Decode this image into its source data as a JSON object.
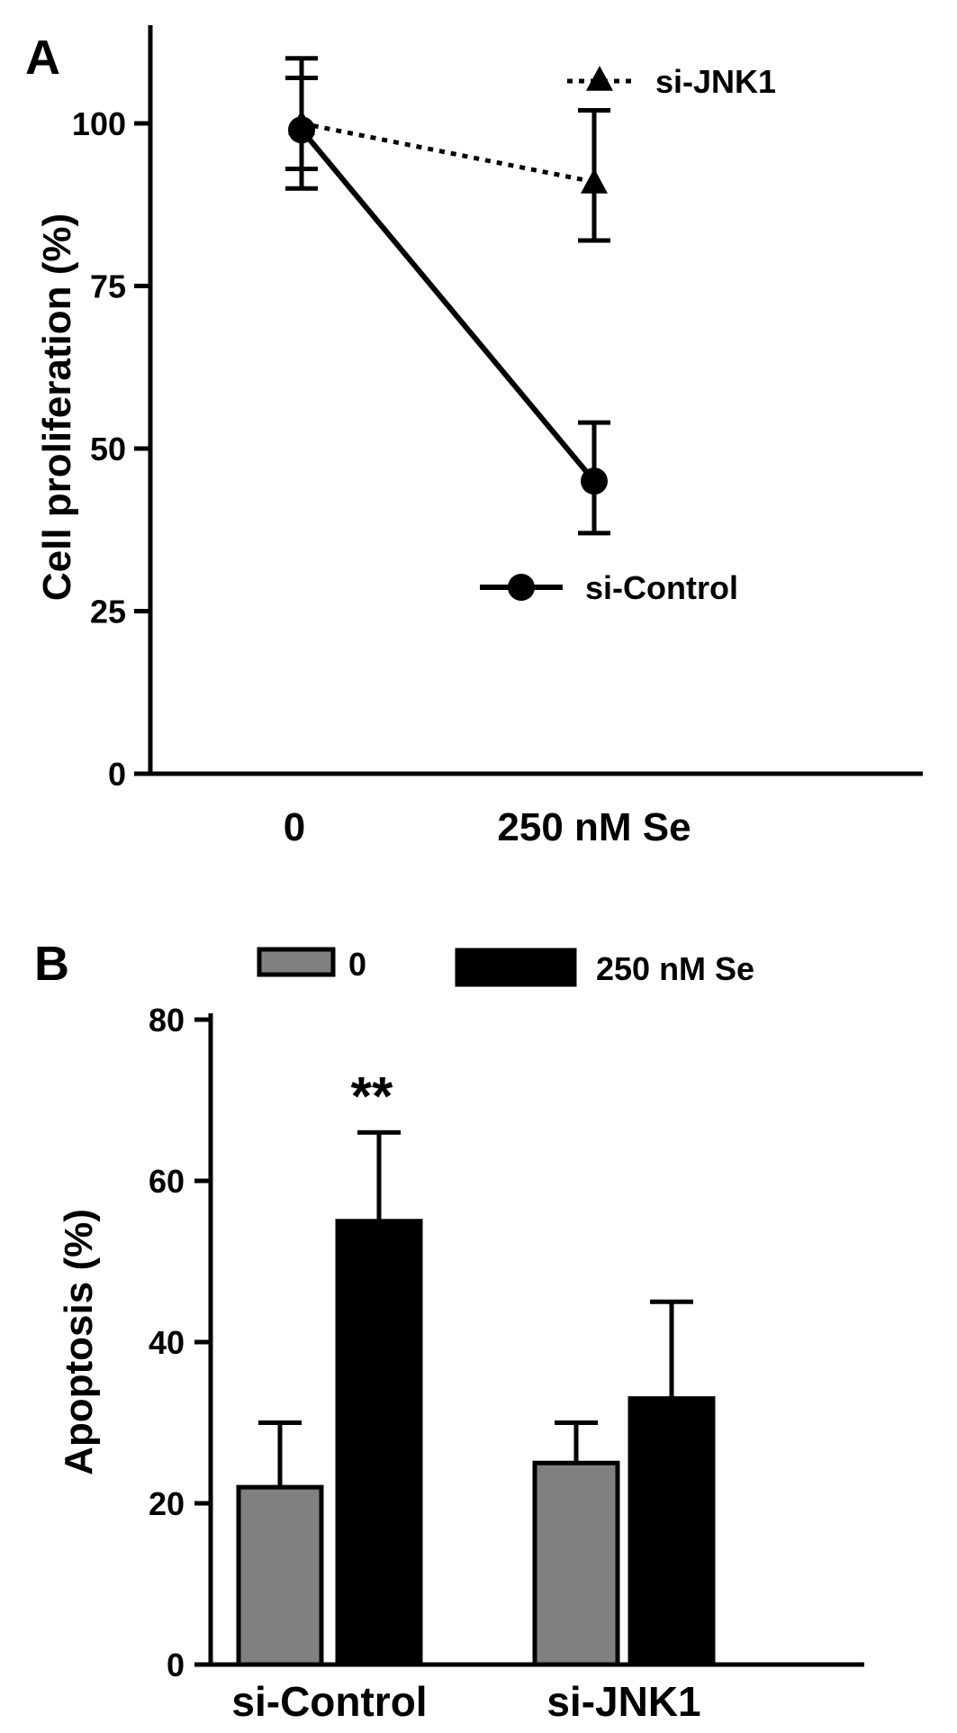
{
  "chart_data": [
    {
      "panel_label": "A",
      "type": "line",
      "title": "",
      "ylabel": "Cell proliferation (%)",
      "xlabel": "",
      "categories": [
        "0",
        "250 nM Se"
      ],
      "ylim": [
        0,
        100
      ],
      "yticks": [
        "0",
        "25",
        "50",
        "75",
        "100"
      ],
      "series": [
        {
          "name": "si-JNK1",
          "marker": "triangle",
          "line_style": "dotted",
          "values": [
            100,
            91
          ],
          "errors": [
            [
              90,
              110
            ],
            [
              82,
              102
            ]
          ]
        },
        {
          "name": "si-Control",
          "marker": "circle",
          "line_style": "solid",
          "values": [
            99,
            45
          ],
          "errors": [
            [
              93,
              107
            ],
            [
              37,
              54
            ]
          ]
        }
      ]
    },
    {
      "panel_label": "B",
      "type": "bar",
      "title": "",
      "ylabel": "Apoptosis (%)",
      "xlabel": "",
      "categories": [
        "si-Control",
        "si-JNK1"
      ],
      "ylim": [
        0,
        80
      ],
      "yticks": [
        "0",
        "20",
        "40",
        "60",
        "80"
      ],
      "series": [
        {
          "name": "0",
          "color": "#808080",
          "values": [
            22,
            25
          ],
          "error_upper": [
            30,
            30
          ]
        },
        {
          "name": "250 nM Se",
          "color": "#000000",
          "values": [
            55,
            33
          ],
          "error_upper": [
            66,
            45
          ]
        }
      ],
      "annotations": [
        {
          "text": "**",
          "category": "si-Control",
          "series": "250 nM Se"
        }
      ]
    }
  ]
}
